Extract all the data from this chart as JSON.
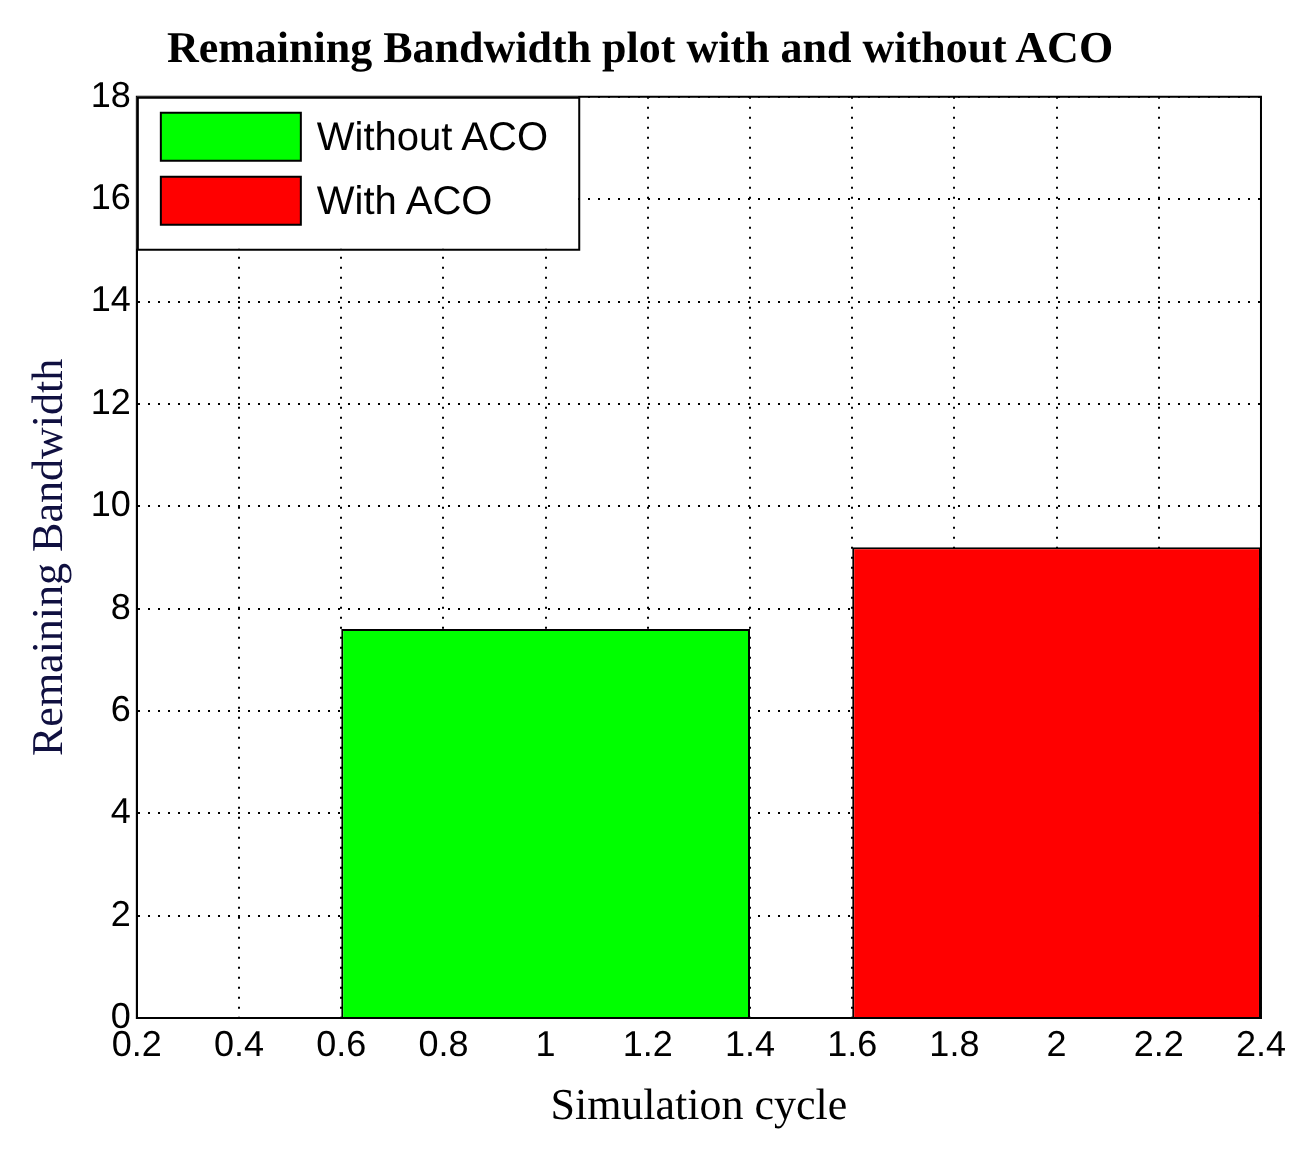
{
  "chart_data": {
    "type": "bar",
    "title": "Remaining Bandwidth plot with and without ACO",
    "xlabel": "Simulation cycle",
    "ylabel": "Remaining Bandwidth",
    "series": [
      {
        "name": "Without ACO",
        "color": "#00ff00",
        "x": [
          1
        ],
        "values": [
          7.6
        ]
      },
      {
        "name": "With ACO",
        "color": "#ff0000",
        "x": [
          2
        ],
        "values": [
          9.2
        ]
      }
    ],
    "xlim": [
      0.2,
      2.4
    ],
    "xticks": [
      0.2,
      0.4,
      0.6,
      0.8,
      1,
      1.2,
      1.4,
      1.6,
      1.8,
      2,
      2.2,
      2.4
    ],
    "ylim": [
      0,
      18
    ],
    "yticks": [
      0,
      2,
      4,
      6,
      8,
      10,
      12,
      14,
      16,
      18
    ],
    "grid": true,
    "legend": "top left"
  }
}
